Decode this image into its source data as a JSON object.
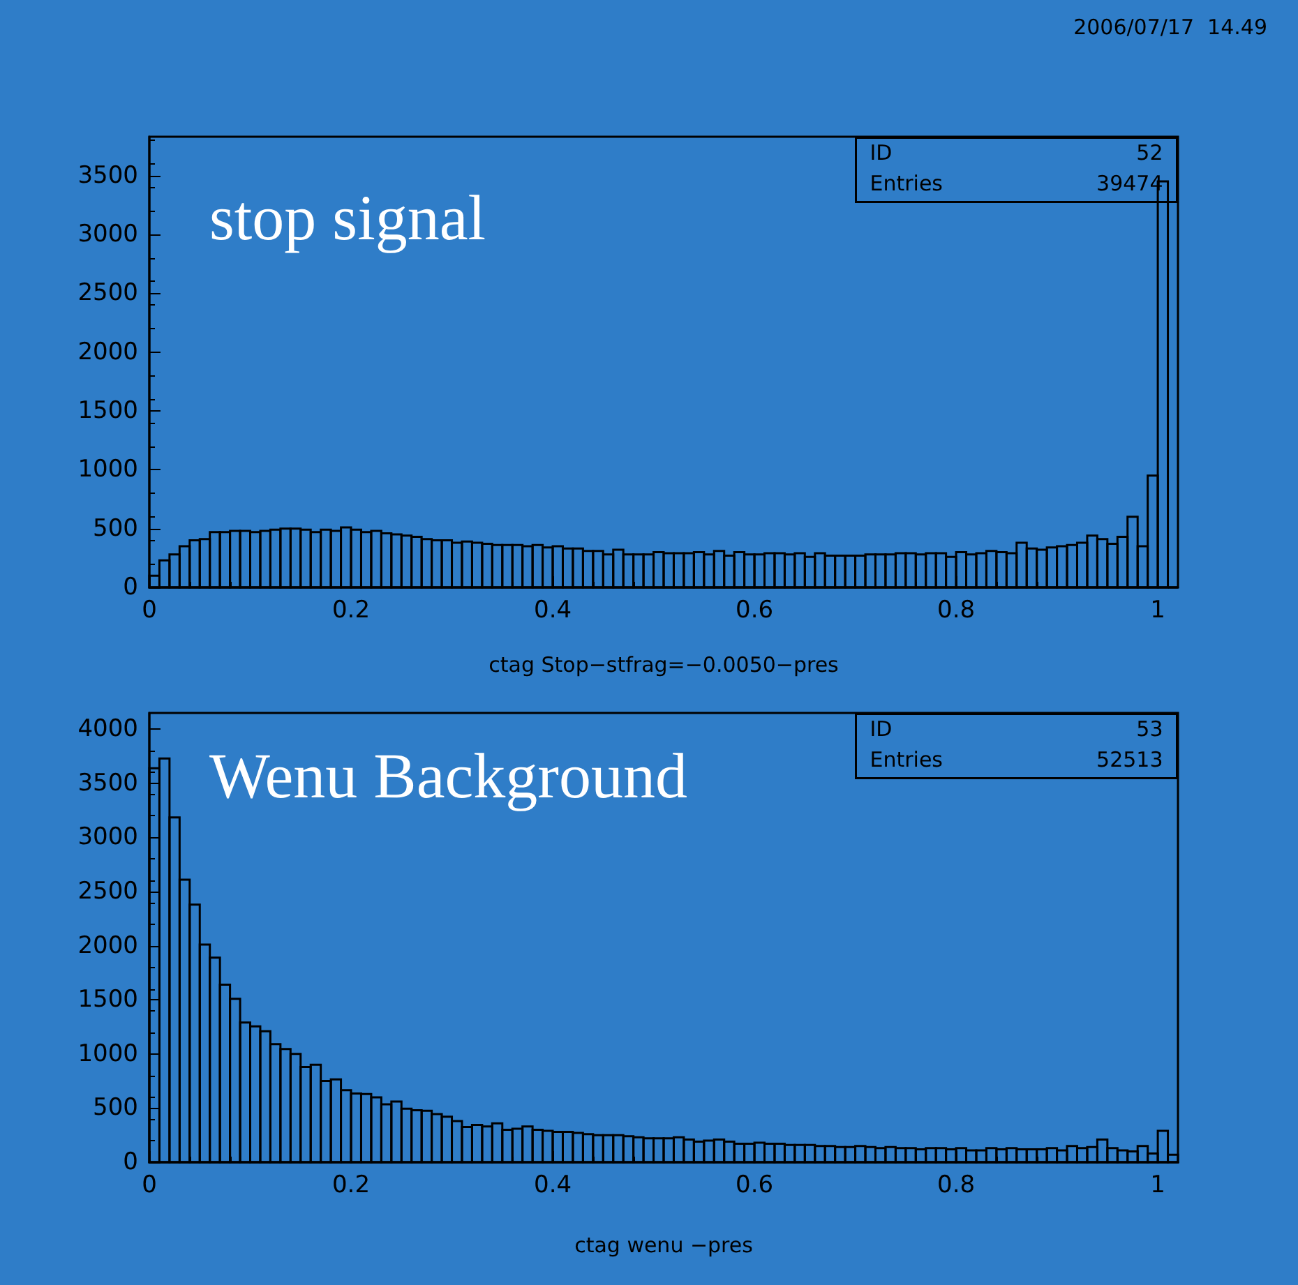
{
  "chart_data": [
    {
      "type": "histogram",
      "title": "2006/07/17  14.49",
      "xlabel": "ctag Stop−stfrag=−0.0050−pres",
      "color": "#000000",
      "grid": false,
      "annotations": [
        "stop signal",
        "ID",
        "52",
        "Entries",
        "39474"
      ],
      "xlim": [
        0,
        1.02
      ],
      "xticks": [
        0,
        0.2,
        0.4,
        0.6,
        0.8,
        1
      ],
      "ylim": [
        0,
        3830
      ],
      "yticks": [
        0,
        500,
        1000,
        1500,
        2000,
        2500,
        3000,
        3500
      ],
      "bins": [
        0,
        0.01,
        0.02,
        0.03,
        0.04,
        0.05,
        0.06,
        0.07,
        0.08,
        0.09,
        0.1,
        0.11,
        0.12,
        0.13,
        0.14,
        0.15,
        0.16,
        0.17,
        0.18,
        0.19,
        0.2,
        0.21,
        0.22,
        0.23,
        0.24,
        0.25,
        0.26,
        0.27,
        0.28,
        0.29,
        0.3,
        0.31,
        0.32,
        0.33,
        0.34,
        0.35,
        0.36,
        0.37,
        0.38,
        0.39,
        0.4,
        0.41,
        0.42,
        0.43,
        0.44,
        0.45,
        0.46,
        0.47,
        0.48,
        0.49,
        0.5,
        0.51,
        0.52,
        0.53,
        0.54,
        0.55,
        0.56,
        0.57,
        0.58,
        0.59,
        0.6,
        0.61,
        0.62,
        0.63,
        0.64,
        0.65,
        0.66,
        0.67,
        0.68,
        0.69,
        0.7,
        0.71,
        0.72,
        0.73,
        0.74,
        0.75,
        0.76,
        0.77,
        0.78,
        0.79,
        0.8,
        0.81,
        0.82,
        0.83,
        0.84,
        0.85,
        0.86,
        0.87,
        0.88,
        0.89,
        0.9,
        0.91,
        0.92,
        0.93,
        0.94,
        0.95,
        0.96,
        0.97,
        0.98,
        0.99,
        1,
        1.01,
        1.02
      ],
      "values": [
        100,
        230,
        280,
        350,
        400,
        410,
        470,
        470,
        480,
        480,
        470,
        480,
        490,
        500,
        500,
        490,
        470,
        490,
        480,
        510,
        490,
        470,
        480,
        460,
        450,
        440,
        430,
        410,
        400,
        400,
        380,
        390,
        380,
        370,
        360,
        360,
        360,
        350,
        360,
        340,
        350,
        330,
        330,
        310,
        310,
        280,
        320,
        280,
        280,
        280,
        300,
        290,
        290,
        290,
        300,
        280,
        310,
        270,
        300,
        280,
        280,
        290,
        290,
        280,
        290,
        260,
        290,
        270,
        270,
        270,
        270,
        280,
        280,
        280,
        290,
        290,
        280,
        290,
        290,
        260,
        300,
        280,
        290,
        310,
        300,
        290,
        380,
        330,
        320,
        340,
        350,
        360,
        380,
        440,
        410,
        370,
        430,
        600,
        350,
        950,
        3450,
        0
      ]
    },
    {
      "type": "histogram",
      "xlabel": "ctag wenu −pres",
      "color": "#000000",
      "grid": false,
      "annotations": [
        "Wenu Background",
        "ID",
        "53",
        "Entries",
        "52513"
      ],
      "xlim": [
        0,
        1.02
      ],
      "xticks": [
        0,
        0.2,
        0.4,
        0.6,
        0.8,
        1
      ],
      "ylim": [
        0,
        4150
      ],
      "yticks": [
        0,
        500,
        1000,
        1500,
        2000,
        2500,
        3000,
        3500,
        4000
      ],
      "bins": [
        0,
        0.01,
        0.02,
        0.03,
        0.04,
        0.05,
        0.06,
        0.07,
        0.08,
        0.09,
        0.1,
        0.11,
        0.12,
        0.13,
        0.14,
        0.15,
        0.16,
        0.17,
        0.18,
        0.19,
        0.2,
        0.21,
        0.22,
        0.23,
        0.24,
        0.25,
        0.26,
        0.27,
        0.28,
        0.29,
        0.3,
        0.31,
        0.32,
        0.33,
        0.34,
        0.35,
        0.36,
        0.37,
        0.38,
        0.39,
        0.4,
        0.41,
        0.42,
        0.43,
        0.44,
        0.45,
        0.46,
        0.47,
        0.48,
        0.49,
        0.5,
        0.51,
        0.52,
        0.53,
        0.54,
        0.55,
        0.56,
        0.57,
        0.58,
        0.59,
        0.6,
        0.61,
        0.62,
        0.63,
        0.64,
        0.65,
        0.66,
        0.67,
        0.68,
        0.69,
        0.7,
        0.71,
        0.72,
        0.73,
        0.74,
        0.75,
        0.76,
        0.77,
        0.78,
        0.79,
        0.8,
        0.81,
        0.82,
        0.83,
        0.84,
        0.85,
        0.86,
        0.87,
        0.88,
        0.89,
        0.9,
        0.91,
        0.92,
        0.93,
        0.94,
        0.95,
        0.96,
        0.97,
        0.98,
        0.99,
        1,
        1.01,
        1.02
      ],
      "values": [
        3640,
        3730,
        3185,
        2610,
        2380,
        2010,
        1890,
        1640,
        1510,
        1290,
        1255,
        1210,
        1090,
        1045,
        1000,
        880,
        900,
        750,
        765,
        665,
        635,
        630,
        600,
        535,
        560,
        495,
        480,
        475,
        445,
        420,
        380,
        325,
        345,
        330,
        360,
        300,
        310,
        330,
        300,
        290,
        280,
        280,
        270,
        260,
        250,
        250,
        250,
        240,
        230,
        220,
        220,
        220,
        230,
        210,
        190,
        200,
        210,
        190,
        170,
        170,
        180,
        170,
        170,
        160,
        160,
        160,
        150,
        150,
        140,
        140,
        150,
        140,
        130,
        140,
        130,
        130,
        120,
        130,
        130,
        120,
        130,
        110,
        110,
        130,
        120,
        130,
        120,
        120,
        120,
        130,
        110,
        150,
        130,
        140,
        210,
        130,
        110,
        100,
        150,
        80,
        290,
        70
      ]
    }
  ]
}
